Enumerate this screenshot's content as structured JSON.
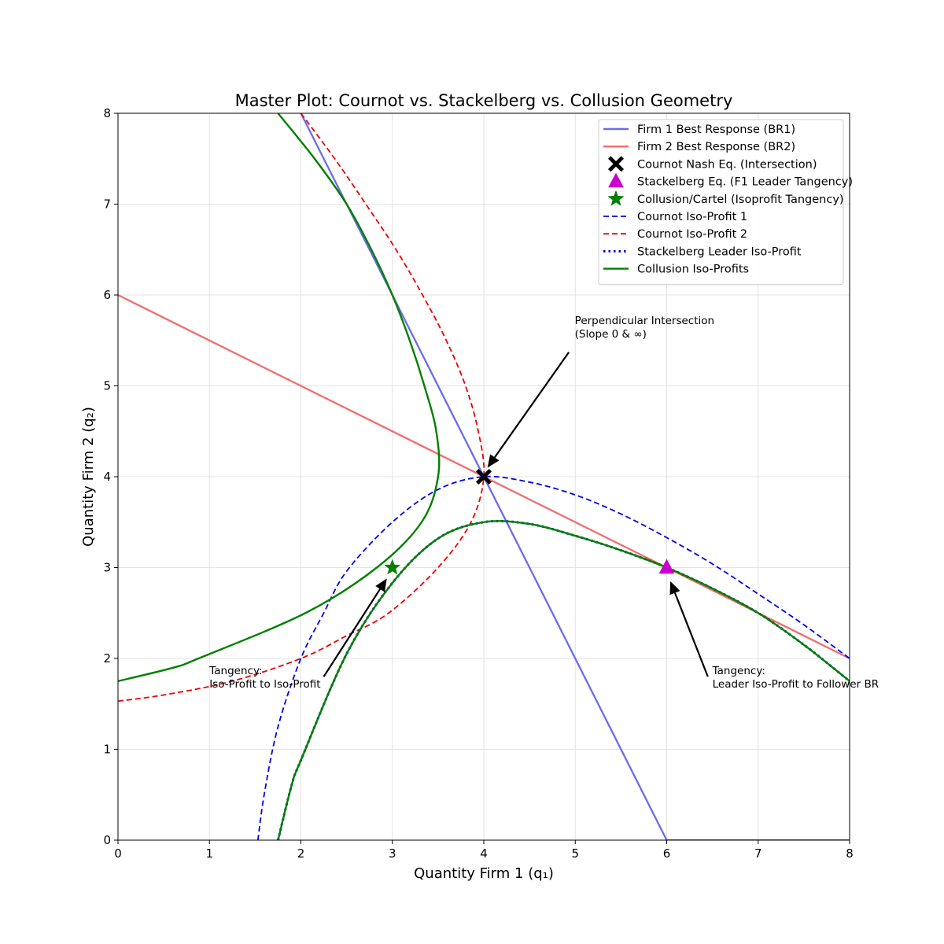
{
  "chart_data": {
    "type": "line",
    "title": "Master Plot: Cournot vs. Stackelberg vs. Collusion Geometry",
    "xlabel": "Quantity Firm 1 (q₁)",
    "ylabel": "Quantity Firm 2 (q₂)",
    "xlim": [
      0,
      8
    ],
    "ylim": [
      0,
      8
    ],
    "xticks": [
      "0",
      "1",
      "2",
      "3",
      "4",
      "5",
      "6",
      "7",
      "8"
    ],
    "yticks": [
      "0",
      "1",
      "2",
      "3",
      "4",
      "5",
      "6",
      "7",
      "8"
    ],
    "grid": true,
    "legend_position": "upper right",
    "series": [
      {
        "name": "Firm 1 Best Response (BR1)",
        "color": "#6b6bf0",
        "style": "solid",
        "points": [
          [
            2,
            8
          ],
          [
            6,
            0
          ],
          [
            8,
            0
          ]
        ]
      },
      {
        "name": "Firm 2 Best Response (BR2)",
        "color": "#f26d6d",
        "style": "solid",
        "points": [
          [
            0,
            6
          ],
          [
            8,
            2
          ]
        ]
      },
      {
        "name": "Cournot Nash Eq. (Intersection)",
        "color": "#000000",
        "marker": "X",
        "points": [
          [
            4,
            4
          ]
        ]
      },
      {
        "name": "Stackelberg Eq. (F1 Leader Tangency)",
        "color": "#cc00cc",
        "marker": "triangle",
        "points": [
          [
            6,
            3
          ]
        ]
      },
      {
        "name": "Collusion/Cartel (Isoprofit Tangency)",
        "color": "#008000",
        "marker": "star",
        "points": [
          [
            3,
            3
          ]
        ]
      },
      {
        "name": "Cournot Iso-Profit 1",
        "color": "#0000ee",
        "style": "dashed",
        "points": [
          [
            1.53,
            0
          ],
          [
            1.6,
            0.51
          ],
          [
            1.75,
            1.25
          ],
          [
            2,
            2
          ],
          [
            2.25,
            2.5
          ],
          [
            2.5,
            2.96
          ],
          [
            3,
            3.5
          ],
          [
            3.5,
            3.86
          ],
          [
            4,
            4
          ],
          [
            4.5,
            3.94
          ],
          [
            5,
            3.8
          ],
          [
            5.5,
            3.59
          ],
          [
            6,
            3.33
          ],
          [
            6.5,
            3.04
          ],
          [
            7,
            2.71
          ],
          [
            7.5,
            2.37
          ],
          [
            8,
            2
          ]
        ]
      },
      {
        "name": "Cournot Iso-Profit 2",
        "color": "#ee0000",
        "style": "dashed",
        "points": [
          [
            0,
            1.53
          ],
          [
            0.51,
            1.6
          ],
          [
            1.25,
            1.75
          ],
          [
            2,
            2
          ],
          [
            2.5,
            2.25
          ],
          [
            2.96,
            2.5
          ],
          [
            3.5,
            3
          ],
          [
            3.86,
            3.5
          ],
          [
            4,
            4
          ],
          [
            3.94,
            4.5
          ],
          [
            3.8,
            5
          ],
          [
            3.59,
            5.5
          ],
          [
            3.33,
            6
          ],
          [
            3.04,
            6.5
          ],
          [
            2.71,
            7
          ],
          [
            2.37,
            7.5
          ],
          [
            2,
            8
          ]
        ]
      },
      {
        "name": "Stackelberg Leader Iso-Profit",
        "color": "#0000ee",
        "style": "dotted",
        "points": [
          [
            1.75,
            0
          ],
          [
            1.9,
            0.61
          ],
          [
            2,
            0.88
          ],
          [
            2.5,
            2.05
          ],
          [
            3,
            2.83
          ],
          [
            3.5,
            3.32
          ],
          [
            4,
            3.5
          ],
          [
            4.5,
            3.48
          ],
          [
            5,
            3.35
          ],
          [
            5.5,
            3.19
          ],
          [
            6,
            3
          ],
          [
            6.5,
            2.77
          ],
          [
            7,
            2.5
          ],
          [
            7.5,
            2.15
          ],
          [
            8,
            1.75
          ]
        ]
      },
      {
        "name": "Collusion Iso-Profits",
        "color": "#008000",
        "style": "solid",
        "points": [
          [
            1.75,
            0
          ],
          [
            1.9,
            0.61
          ],
          [
            2,
            0.88
          ],
          [
            2.5,
            2.05
          ],
          [
            3,
            2.83
          ],
          [
            3.5,
            3.32
          ],
          [
            4,
            3.5
          ],
          [
            4.5,
            3.48
          ],
          [
            5,
            3.35
          ],
          [
            5.5,
            3.19
          ],
          [
            6,
            3
          ],
          [
            6.5,
            2.77
          ],
          [
            7,
            2.5
          ],
          [
            7.5,
            2.15
          ],
          [
            8,
            1.75
          ]
        ]
      },
      {
        "name": "",
        "color": "#008000",
        "style": "solid",
        "points": [
          [
            0,
            1.75
          ],
          [
            0.61,
            1.9
          ],
          [
            0.88,
            2
          ],
          [
            2.05,
            2.5
          ],
          [
            2.83,
            3
          ],
          [
            3.32,
            3.5
          ],
          [
            3.5,
            4
          ],
          [
            3.48,
            4.5
          ],
          [
            3.35,
            5
          ],
          [
            3.19,
            5.5
          ],
          [
            3,
            6
          ],
          [
            2.77,
            6.5
          ],
          [
            2.5,
            7
          ],
          [
            2.15,
            7.5
          ],
          [
            1.75,
            8
          ]
        ]
      }
    ],
    "annotations": [
      {
        "lines": [
          "Perpendicular Intersection",
          "(Slope 0 & ∞)"
        ],
        "text_pos": [
          4.995,
          5.6
        ],
        "arrow_from": [
          4.93,
          5.37
        ],
        "arrow_to": [
          4.04,
          4.1
        ]
      },
      {
        "lines": [
          "Tangency:",
          "Iso-Profit to Iso-Profit"
        ],
        "text_pos": [
          1.0,
          1.75
        ],
        "arrow_from": [
          2.25,
          1.8
        ],
        "arrow_to": [
          2.94,
          2.88
        ]
      },
      {
        "lines": [
          "Tangency:",
          "Leader Iso-Profit to Follower BR"
        ],
        "text_pos": [
          6.5,
          1.75
        ],
        "arrow_from": [
          6.45,
          1.8
        ],
        "arrow_to": [
          6.04,
          2.85
        ]
      }
    ]
  }
}
